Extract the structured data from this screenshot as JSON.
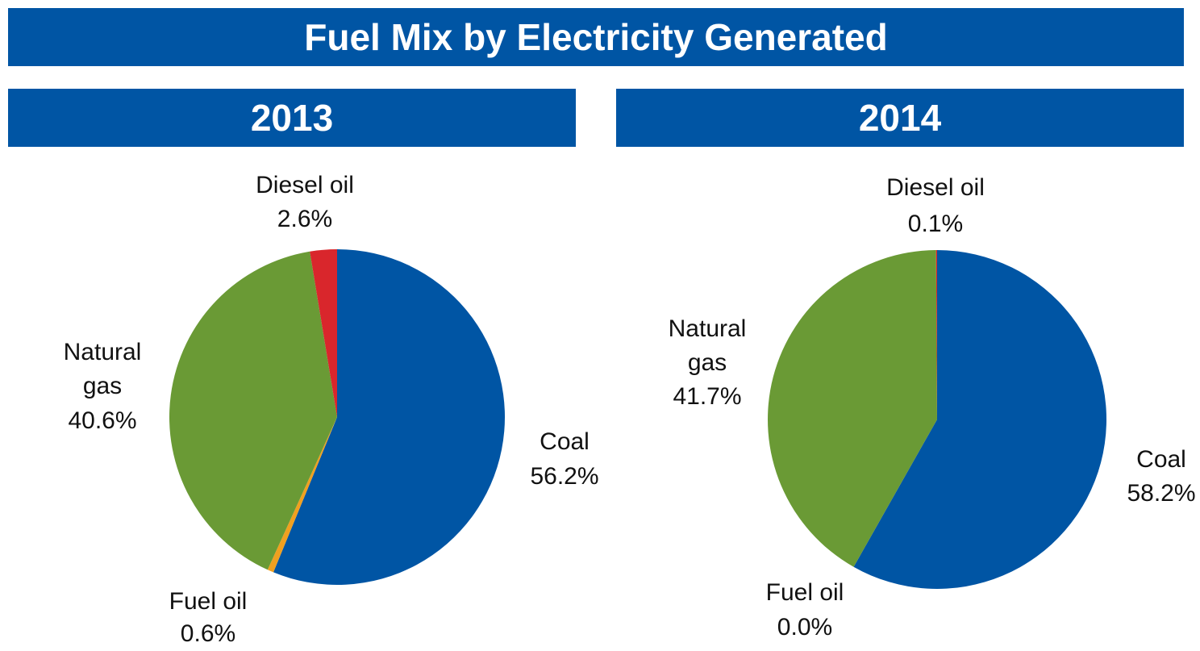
{
  "title": "Fuel Mix by Electricity Generated",
  "chart_data": [
    {
      "type": "pie",
      "title": "2013",
      "categories": [
        "Coal",
        "Fuel oil",
        "Natural gas",
        "Diesel oil"
      ],
      "values": [
        56.2,
        0.6,
        40.6,
        2.6
      ],
      "value_labels": [
        "56.2%",
        "0.6%",
        "40.6%",
        "2.6%"
      ],
      "colors": [
        "#0055a4",
        "#f0a020",
        "#6a9a35",
        "#d9262c"
      ]
    },
    {
      "type": "pie",
      "title": "2014",
      "categories": [
        "Coal",
        "Fuel oil",
        "Natural gas",
        "Diesel oil"
      ],
      "values": [
        58.2,
        0.0,
        41.7,
        0.1
      ],
      "value_labels": [
        "58.2%",
        "0.0%",
        "41.7%",
        "0.1%"
      ],
      "colors": [
        "#0055a4",
        "#f0a020",
        "#6a9a35",
        "#d9262c"
      ]
    }
  ]
}
